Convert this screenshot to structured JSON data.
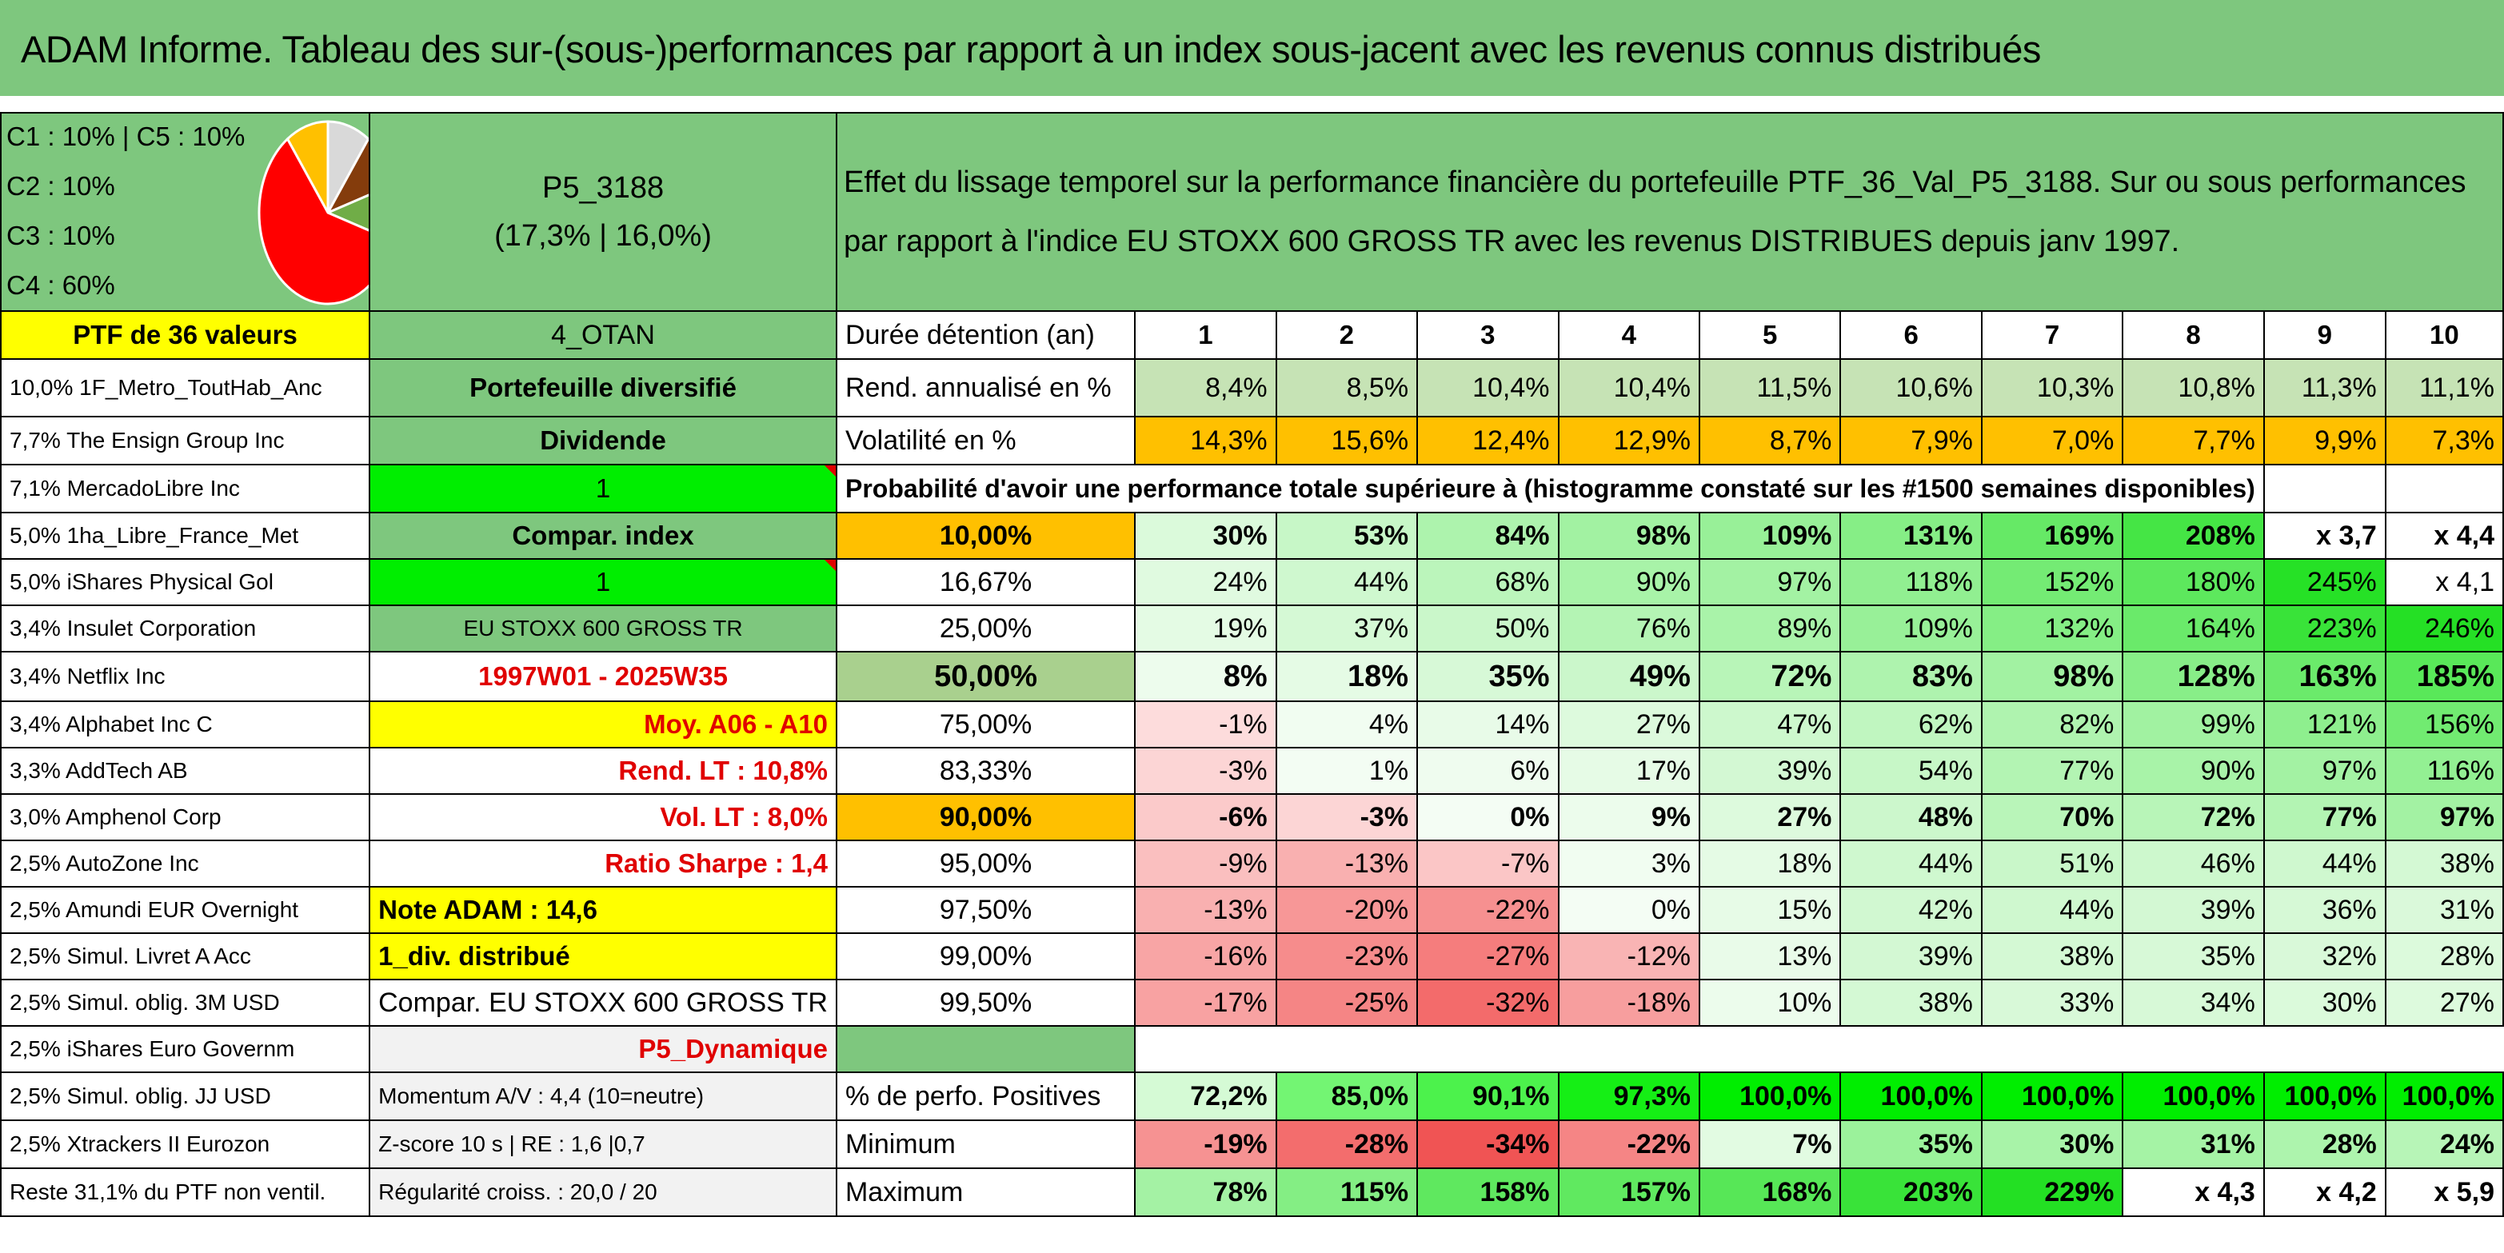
{
  "title": "ADAM Informe. Tableau des sur-(sous-)performances par rapport à un index sous-jacent avec les revenus connus distribués",
  "pie": {
    "legend": [
      "C1 : 10% | C5 : 10%",
      "C2 : 10%",
      "C3 : 10%",
      "C4 : 60%"
    ],
    "slices": [
      {
        "name": "C1",
        "value": 10,
        "color": "#d9d9d9"
      },
      {
        "name": "C2",
        "value": 10,
        "color": "#843c0c"
      },
      {
        "name": "C3",
        "value": 10,
        "color": "#70ad47"
      },
      {
        "name": "C4",
        "value": 60,
        "color": "#ff0000"
      },
      {
        "name": "C5",
        "value": 10,
        "color": "#ffc000"
      }
    ]
  },
  "portfolio": {
    "code": "P5_3188",
    "perf": "(17,3% | 16,0%)",
    "description": "Effet du lissage temporel sur la performance financière du portefeuille PTF_36_Val_P5_3188. Sur ou sous performances par rapport à l'indice EU STOXX 600 GROSS TR avec les revenus DISTRIBUES depuis janv 1997."
  },
  "header": {
    "ptf_count": "PTF de 36 valeurs",
    "category": "4_OTAN",
    "duration_label": "Durée détention (an)",
    "years": [
      "1",
      "2",
      "3",
      "4",
      "5",
      "6",
      "7",
      "8",
      "9",
      "10"
    ]
  },
  "holdings": [
    "10,0% 1F_Metro_ToutHab_Anc",
    "7,7% The Ensign Group Inc",
    "7,1% MercadoLibre Inc",
    "5,0% 1ha_Libre_France_Met",
    "5,0% iShares Physical Gol",
    "3,4% Insulet Corporation",
    "3,4% Netflix Inc",
    "3,4% Alphabet Inc C",
    "3,3% AddTech AB",
    "3,0% Amphenol Corp",
    "2,5% AutoZone Inc",
    "2,5% Amundi EUR Overnight",
    "2,5% Simul. Livret A Acc",
    "2,5% Simul. oblig. 3M USD",
    "2,5% iShares Euro Governm",
    "2,5% Simul. oblig. JJ USD",
    "2,5% Xtrackers II Eurozon",
    "Reste 31,1% du PTF non ventil."
  ],
  "side": {
    "diversified": "Portefeuille diversifié",
    "dividend": "Dividende",
    "one_a": "1",
    "compar_index": "Compar. index",
    "one_b": "1",
    "index_name": "EU STOXX 600 GROSS TR",
    "period": "1997W01 - 2025W35",
    "moy": "Moy. A06 - A10",
    "rend_lt": "Rend. LT : 10,8%",
    "vol_lt": "Vol. LT : 8,0%",
    "sharpe": "Ratio Sharpe : 1,4",
    "note": "Note ADAM : 14,6",
    "div": "1_div. distribué",
    "compar_full": "Compar. EU STOXX 600 GROSS TR",
    "profile": "P5_Dynamique",
    "momentum": "Momentum A/V : 4,4 (10=neutre)",
    "zscore": "Z-score 10 s | RE : 1,6 |0,7",
    "regularite": "Régularité croiss. : 20,0 / 20"
  },
  "rend": {
    "label": "Rend. annualisé en %",
    "values": [
      "8,4%",
      "8,5%",
      "10,4%",
      "10,4%",
      "11,5%",
      "10,6%",
      "10,3%",
      "10,8%",
      "11,3%",
      "11,1%"
    ]
  },
  "vol": {
    "label": "Volatilité en %",
    "values": [
      "14,3%",
      "15,6%",
      "12,4%",
      "12,9%",
      "8,7%",
      "7,9%",
      "7,0%",
      "7,7%",
      "9,9%",
      "7,3%"
    ]
  },
  "proba_title": "Probabilité d'avoir une performance totale supérieure à (histogramme constaté sur les #1500 semaines disponibles)",
  "proba": [
    {
      "p": "10,00%",
      "values": [
        "30%",
        "53%",
        "84%",
        "98%",
        "109%",
        "131%",
        "169%",
        "208%",
        "x 3,7",
        "x 4,4"
      ]
    },
    {
      "p": "16,67%",
      "values": [
        "24%",
        "44%",
        "68%",
        "90%",
        "97%",
        "118%",
        "152%",
        "180%",
        "245%",
        "x 4,1"
      ]
    },
    {
      "p": "25,00%",
      "values": [
        "19%",
        "37%",
        "50%",
        "76%",
        "89%",
        "109%",
        "132%",
        "164%",
        "223%",
        "246%"
      ]
    },
    {
      "p": "50,00%",
      "values": [
        "8%",
        "18%",
        "35%",
        "49%",
        "72%",
        "83%",
        "98%",
        "128%",
        "163%",
        "185%"
      ]
    },
    {
      "p": "75,00%",
      "values": [
        "-1%",
        "4%",
        "14%",
        "27%",
        "47%",
        "62%",
        "82%",
        "99%",
        "121%",
        "156%"
      ]
    },
    {
      "p": "83,33%",
      "values": [
        "-3%",
        "1%",
        "6%",
        "17%",
        "39%",
        "54%",
        "77%",
        "90%",
        "97%",
        "116%"
      ]
    },
    {
      "p": "90,00%",
      "values": [
        "-6%",
        "-3%",
        "0%",
        "9%",
        "27%",
        "48%",
        "70%",
        "72%",
        "77%",
        "97%"
      ]
    },
    {
      "p": "95,00%",
      "values": [
        "-9%",
        "-13%",
        "-7%",
        "3%",
        "18%",
        "44%",
        "51%",
        "46%",
        "44%",
        "38%"
      ]
    },
    {
      "p": "97,50%",
      "values": [
        "-13%",
        "-20%",
        "-22%",
        "0%",
        "15%",
        "42%",
        "44%",
        "39%",
        "36%",
        "31%"
      ]
    },
    {
      "p": "99,00%",
      "values": [
        "-16%",
        "-23%",
        "-27%",
        "-12%",
        "13%",
        "39%",
        "38%",
        "35%",
        "32%",
        "28%"
      ]
    },
    {
      "p": "99,50%",
      "values": [
        "-17%",
        "-25%",
        "-32%",
        "-18%",
        "10%",
        "38%",
        "33%",
        "34%",
        "30%",
        "27%"
      ]
    }
  ],
  "pos": {
    "label": "% de perfo. Positives",
    "values": [
      "72,2%",
      "85,0%",
      "90,1%",
      "97,3%",
      "100,0%",
      "100,0%",
      "100,0%",
      "100,0%",
      "100,0%",
      "100,0%"
    ]
  },
  "min": {
    "label": "Minimum",
    "values": [
      "-19%",
      "-28%",
      "-34%",
      "-22%",
      "7%",
      "35%",
      "30%",
      "31%",
      "28%",
      "24%"
    ]
  },
  "max": {
    "label": "Maximum",
    "values": [
      "78%",
      "115%",
      "158%",
      "157%",
      "168%",
      "203%",
      "229%",
      "x 4,3",
      "x 4,2",
      "x 5,9"
    ]
  },
  "colors": {
    "header_green": "#7ec77e",
    "yellow": "#ffff00",
    "lime": "#00ee00",
    "orange": "#ffc000",
    "red_text": "#e00000"
  }
}
